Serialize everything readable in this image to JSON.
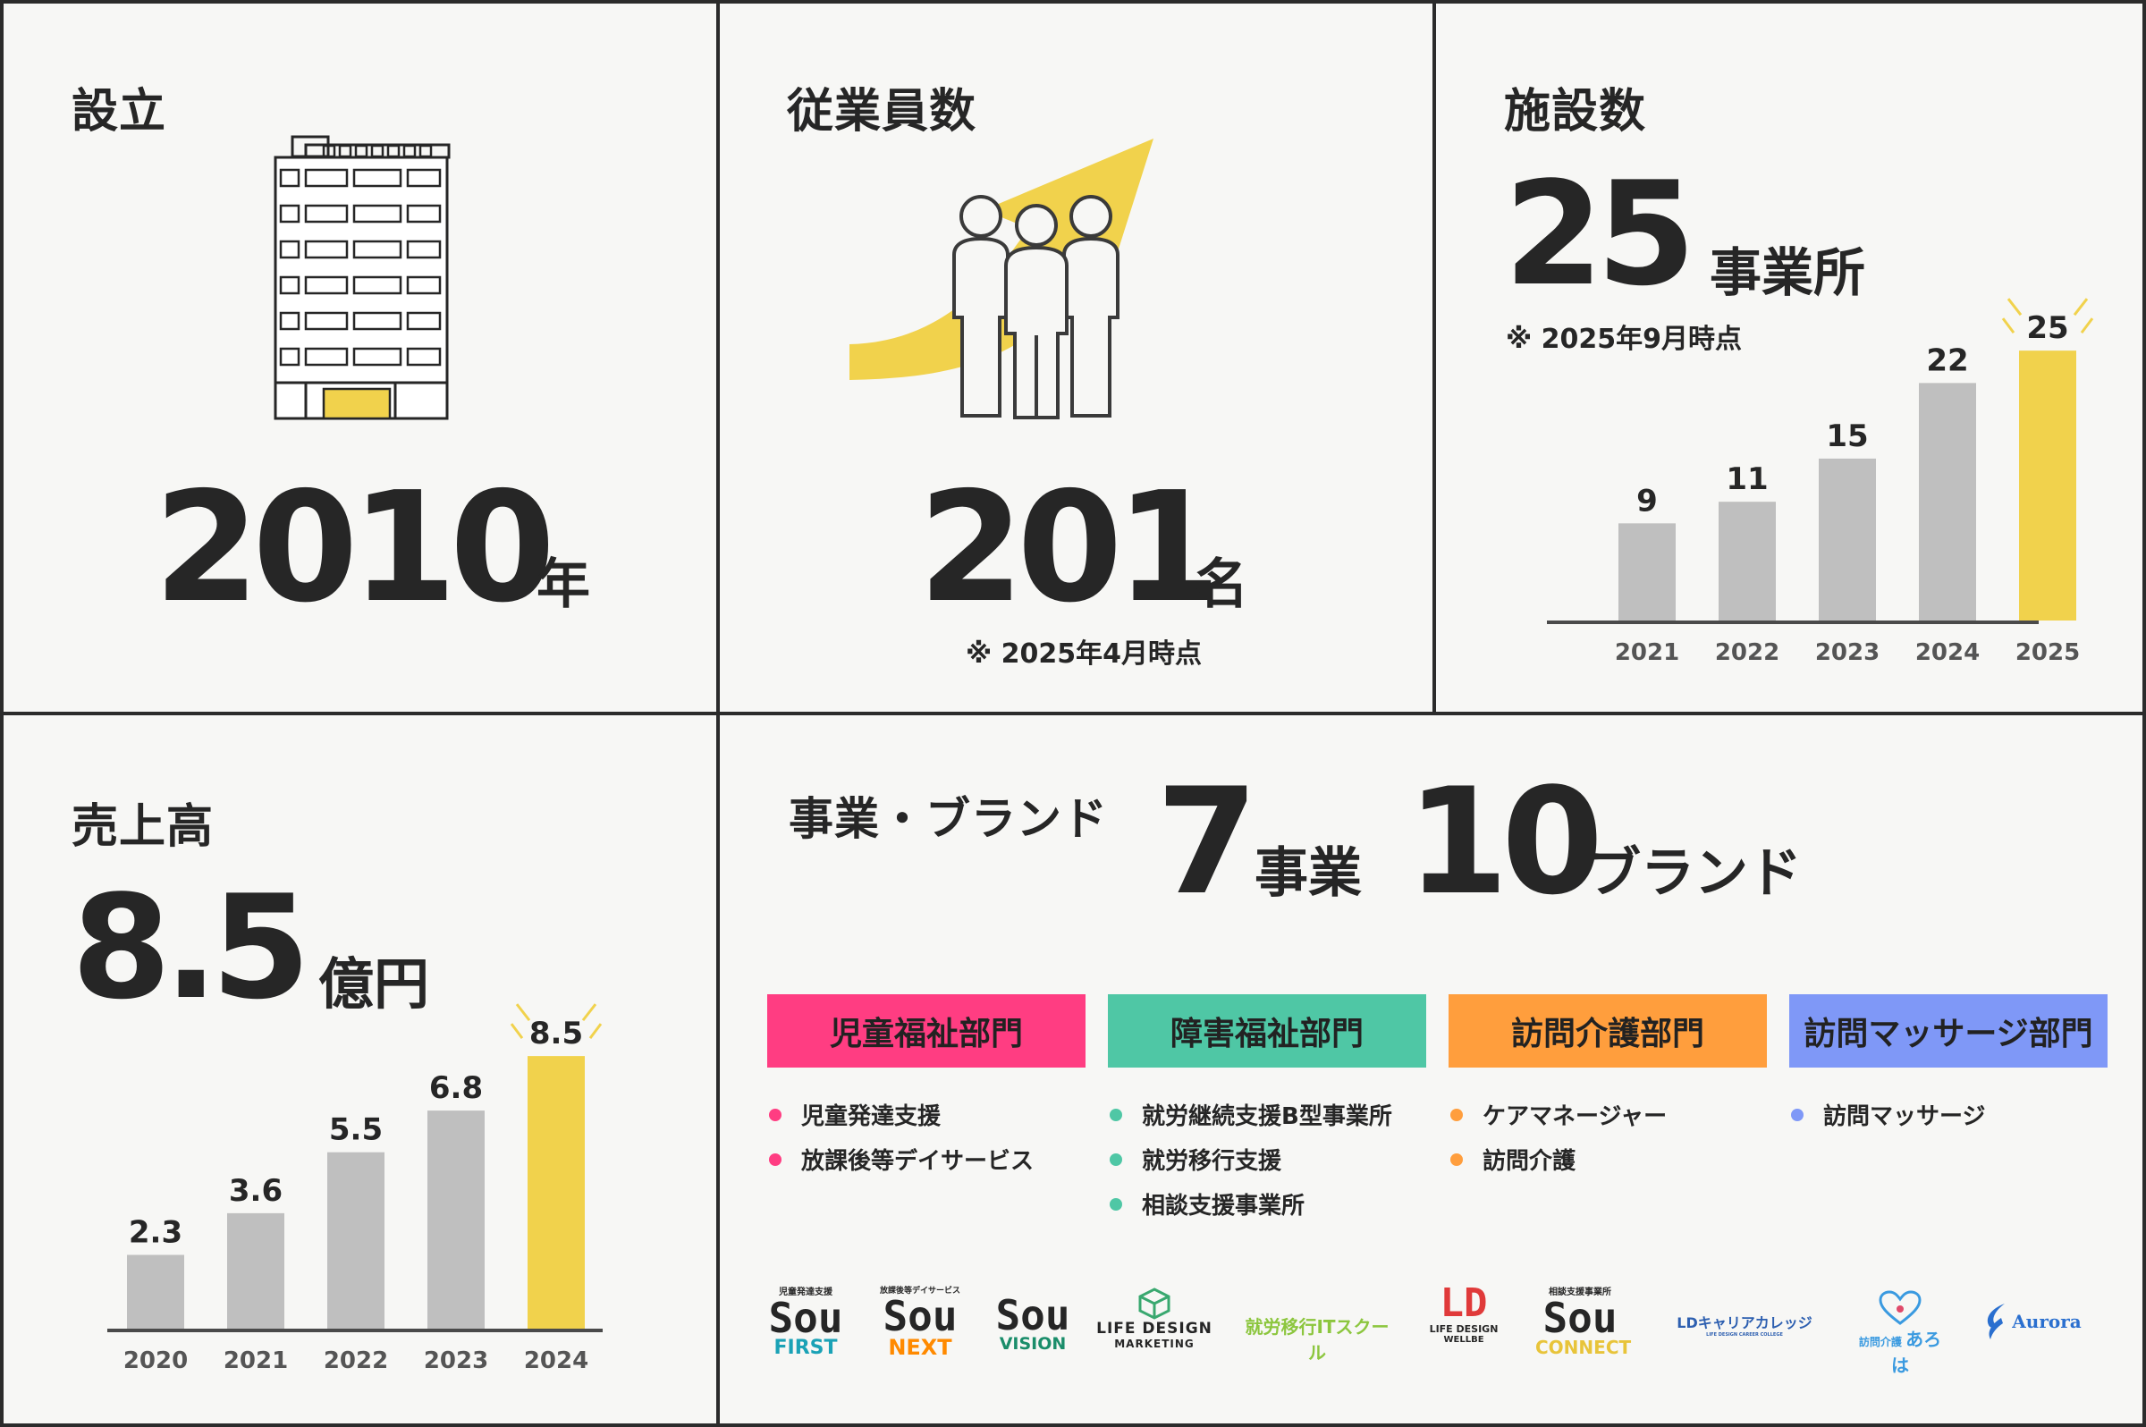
{
  "colors": {
    "accent": "#f1d24c",
    "bar": "#bfbfbf",
    "child": "#ff3d82",
    "disability": "#4fc7a5",
    "visit": "#ff9e3d",
    "massage": "#7f98f7"
  },
  "established": {
    "title": "設立",
    "value": "2010",
    "unit": "年",
    "icon": "office-building-icon"
  },
  "employees": {
    "title": "従業員数",
    "value": "201",
    "unit": "名",
    "note": "※ 2025年4月時点",
    "icon": "people-growth-arrow-icon"
  },
  "facilities": {
    "title": "施設数",
    "value": "25",
    "unit": "事業所",
    "note": "※ 2025年9月時点",
    "chart_data": {
      "type": "bar",
      "categories": [
        "2021",
        "2022",
        "2023",
        "2024",
        "2025"
      ],
      "values": [
        9,
        11,
        15,
        22,
        25
      ],
      "ylim": [
        0,
        27
      ],
      "highlight_index": 4
    }
  },
  "sales": {
    "title": "売上高",
    "value": "8.5",
    "unit": "億円",
    "chart_data": {
      "type": "bar",
      "categories": [
        "2020",
        "2021",
        "2022",
        "2023",
        "2024"
      ],
      "values": [
        2.3,
        3.6,
        5.5,
        6.8,
        8.5
      ],
      "ylim": [
        0,
        9.2
      ],
      "highlight_index": 4
    }
  },
  "business": {
    "title": "事業・ブランド",
    "business_count": "7",
    "business_unit": "事業",
    "brand_count": "10",
    "brand_unit": "ブランド",
    "departments": [
      {
        "name": "児童福祉部門",
        "services": [
          "児童発達支援",
          "放課後等デイサービス"
        ]
      },
      {
        "name": "障害福祉部門",
        "services": [
          "就労継続支援B型事業所",
          "就労移行支援",
          "相談支援事業所"
        ]
      },
      {
        "name": "訪問介護部門",
        "services": [
          "ケアマネージャー",
          "訪問介護"
        ]
      },
      {
        "name": "訪問マッサージ部門",
        "services": [
          "訪問マッサージ"
        ]
      }
    ],
    "brands": [
      {
        "caption": "児童発達支援",
        "main": "Sou",
        "sub": "FIRST"
      },
      {
        "caption": "放課後等デイサービス",
        "main": "Sou",
        "sub": "NEXT"
      },
      {
        "main": "Sou",
        "sub": "VISION"
      },
      {
        "main": "LIFE DESIGN",
        "sub": "MARKETING"
      },
      {
        "main": "就労移行ITスクール"
      },
      {
        "main": "LIFE DESIGN",
        "sub": "WELLBE"
      },
      {
        "caption": "相談支援事業所",
        "main": "Sou",
        "sub": "CONNECT"
      },
      {
        "main": "LDキャリアカレッジ",
        "sub": "LIFE DESIGN CAREER COLLEGE"
      },
      {
        "caption": "訪問介護",
        "main": "あろは"
      },
      {
        "main": "Aurora"
      }
    ]
  }
}
